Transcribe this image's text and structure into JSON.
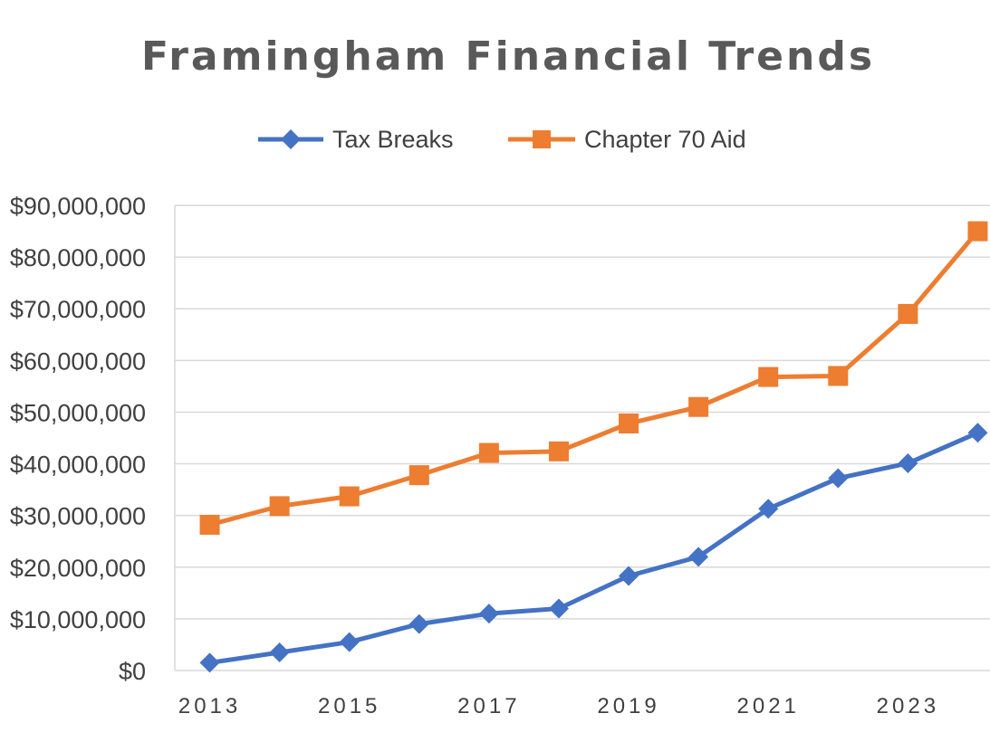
{
  "chart_data": {
    "type": "line",
    "title": "Framingham Financial Trends",
    "x": [
      2013,
      2014,
      2015,
      2016,
      2017,
      2018,
      2019,
      2020,
      2021,
      2022,
      2023,
      2024
    ],
    "x_tick_labels": [
      "2013",
      "2015",
      "2017",
      "2019",
      "2021",
      "2023"
    ],
    "y_tick_labels": [
      "$0",
      "$10,000,000",
      "$20,000,000",
      "$30,000,000",
      "$40,000,000",
      "$50,000,000",
      "$60,000,000",
      "$70,000,000",
      "$80,000,000",
      "$90,000,000"
    ],
    "ylim": [
      0,
      90000000
    ],
    "grid": true,
    "legend_position": "top",
    "series": [
      {
        "name": "Tax Breaks",
        "color": "#4472c4",
        "marker": "diamond",
        "values": [
          1500000,
          3500000,
          5500000,
          9000000,
          11000000,
          12000000,
          18300000,
          22000000,
          31300000,
          37200000,
          40100000,
          46000000
        ]
      },
      {
        "name": "Chapter 70 Aid",
        "color": "#ed7d31",
        "marker": "square",
        "values": [
          28200000,
          31800000,
          33700000,
          37800000,
          42100000,
          42400000,
          47800000,
          51000000,
          56800000,
          57000000,
          69000000,
          85000000
        ]
      }
    ]
  }
}
